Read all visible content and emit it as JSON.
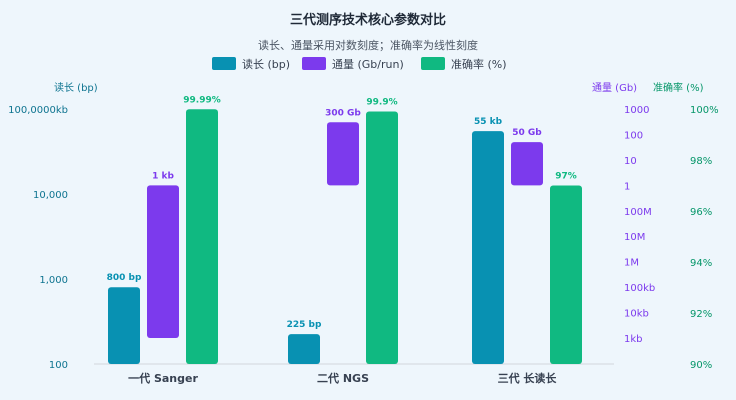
{
  "colors": {
    "read_length": "#0891b2",
    "throughput": "#7c3aed",
    "accuracy": "#10b981",
    "axis_text_left": "#0e7490",
    "axis_text_throughput": "#7c3aed",
    "axis_text_accuracy": "#059669"
  },
  "chart_data": {
    "type": "bar",
    "title": "三代测序技术核心参数对比",
    "subtitle": "读长、通量采用对数刻度；准确率为线性刻度",
    "categories": [
      "一代 Sanger",
      "二代 NGS",
      "三代 长读长"
    ],
    "legend": {
      "placement": "top-center",
      "entries": [
        "读长 (bp)",
        "通量 (Gb/run)",
        "准确率 (%)"
      ]
    },
    "axes": {
      "left": {
        "label": "读长 (bp)",
        "scale": "log",
        "range": [
          100,
          100000
        ],
        "ticks": [
          "100",
          "1,000",
          "10,000",
          "100,0000kb"
        ]
      },
      "throughput": {
        "label": "通量 (Gb)",
        "scale": "log",
        "range_labels": [
          "1kb",
          "1000"
        ],
        "ticks": [
          "1kb",
          "10kb",
          "100kb",
          "1M",
          "10M",
          "100M",
          "1",
          "10",
          "100",
          "1000"
        ]
      },
      "accuracy": {
        "label": "准确率 (%)",
        "scale": "linear",
        "range": [
          90,
          100
        ],
        "ticks": [
          "90%",
          "92%",
          "94%",
          "96%",
          "98%",
          "100%"
        ]
      }
    },
    "series": [
      {
        "name": "读长 (bp)",
        "axis": "left",
        "values": [
          800,
          225,
          55000
        ],
        "labels": [
          "800 bp",
          "225 bp",
          "55 kb"
        ]
      },
      {
        "name": "通量 (Gb/run)",
        "axis": "throughput",
        "values": [
          1e-06,
          300,
          50
        ],
        "baseline": 1,
        "labels": [
          "1 kb",
          "300 Gb",
          "50 Gb"
        ]
      },
      {
        "name": "准确率 (%)",
        "axis": "accuracy",
        "values": [
          99.99,
          99.9,
          97
        ],
        "labels": [
          "99.99%",
          "99.9%",
          "97%"
        ]
      }
    ],
    "grid": false
  }
}
